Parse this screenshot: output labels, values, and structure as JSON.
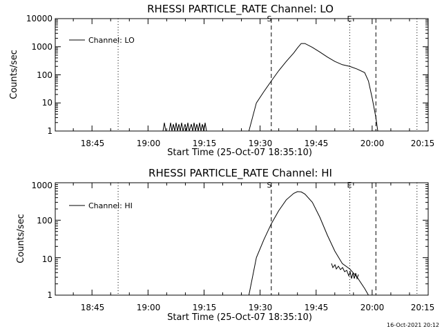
{
  "chart_data": [
    {
      "type": "line",
      "title": "RHESSI PARTICLE_RATE Channel: LO",
      "xlabel": "Start Time (25-Oct-07 18:35:10)",
      "ylabel": "Counts/sec",
      "yscale": "log",
      "xlim": [
        "18:35:10",
        "20:15"
      ],
      "ylim": [
        1,
        10000
      ],
      "x_tick_labels": [
        "18:45",
        "19:00",
        "19:15",
        "19:30",
        "19:45",
        "20:00",
        "20:15"
      ],
      "y_tick_labels": [
        "1",
        "10",
        "100",
        "1000",
        "10000"
      ],
      "legend": {
        "entries": [
          "Channel: LO"
        ],
        "position": "top-left"
      },
      "grid": false,
      "vertical_lines": [
        {
          "x": "18:52",
          "style": "dotted"
        },
        {
          "x": "19:33",
          "style": "dashed",
          "label": "S"
        },
        {
          "x": "19:54",
          "style": "dotted",
          "label": "E"
        },
        {
          "x": "20:01",
          "style": "dashed"
        },
        {
          "x": "20:12",
          "style": "dotted"
        }
      ],
      "series": [
        {
          "name": "Channel: LO",
          "x": [
            "19:27",
            "19:29",
            "19:31",
            "19:33",
            "19:35",
            "19:37",
            "19:39",
            "19:40",
            "19:41",
            "19:42",
            "19:44",
            "19:46",
            "19:48",
            "19:50",
            "19:52",
            "19:54",
            "19:56",
            "19:58",
            "19:59",
            "20:00",
            "20:01",
            "20:01:30"
          ],
          "y": [
            1,
            10,
            25,
            60,
            140,
            300,
            600,
            900,
            1300,
            1300,
            950,
            650,
            430,
            300,
            230,
            200,
            160,
            120,
            60,
            15,
            3,
            1
          ]
        }
      ]
    },
    {
      "type": "line",
      "title": "RHESSI PARTICLE_RATE Channel: HI",
      "xlabel": "Start Time (25-Oct-07 18:35:10)",
      "ylabel": "Counts/sec",
      "yscale": "log",
      "xlim": [
        "18:35:10",
        "20:15"
      ],
      "ylim": [
        1,
        1000
      ],
      "x_tick_labels": [
        "18:45",
        "19:00",
        "19:15",
        "19:30",
        "19:45",
        "20:00",
        "20:15"
      ],
      "y_tick_labels": [
        "1",
        "10",
        "100",
        "1000"
      ],
      "legend": {
        "entries": [
          "Channel: HI"
        ],
        "position": "top-left"
      },
      "grid": false,
      "vertical_lines": [
        {
          "x": "18:52",
          "style": "dotted"
        },
        {
          "x": "19:33",
          "style": "dashed",
          "label": "S"
        },
        {
          "x": "19:54",
          "style": "dotted",
          "label": "E"
        },
        {
          "x": "20:01",
          "style": "dashed"
        },
        {
          "x": "20:12",
          "style": "dotted"
        }
      ],
      "series": [
        {
          "name": "Channel: HI",
          "x": [
            "19:27",
            "19:29",
            "19:31",
            "19:33",
            "19:35",
            "19:37",
            "19:39",
            "19:40",
            "19:41",
            "19:42",
            "19:44",
            "19:46",
            "19:48",
            "19:50",
            "19:52",
            "19:54",
            "19:56",
            "19:58",
            "19:59"
          ],
          "y": [
            1,
            10,
            30,
            80,
            180,
            350,
            520,
            580,
            570,
            500,
            300,
            120,
            40,
            15,
            7,
            5,
            3,
            1.5,
            1
          ]
        }
      ]
    }
  ],
  "footer": {
    "timestamp": "16-Oct-2021 20:12"
  }
}
